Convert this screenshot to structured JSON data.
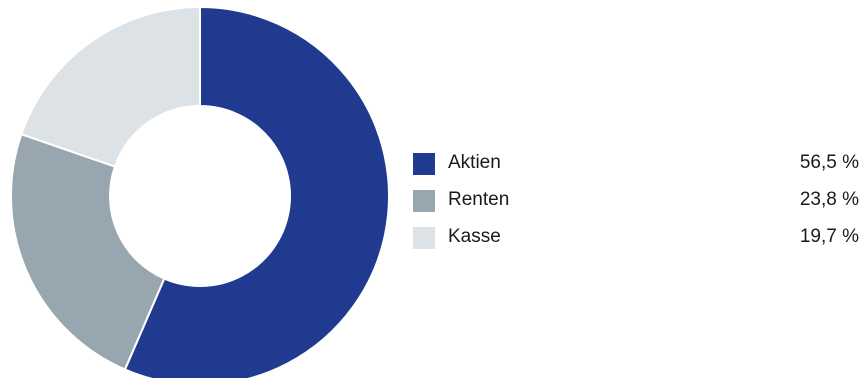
{
  "chart_data": {
    "type": "pie",
    "categories": [
      "Aktien",
      "Renten",
      "Kasse"
    ],
    "values": [
      56.5,
      23.8,
      19.7
    ],
    "value_labels": [
      "56,5 %",
      "23,8 %",
      "19,7 %"
    ],
    "colors": [
      "#203a8f",
      "#98a6b0",
      "#dde2e6"
    ],
    "legend": "right"
  }
}
